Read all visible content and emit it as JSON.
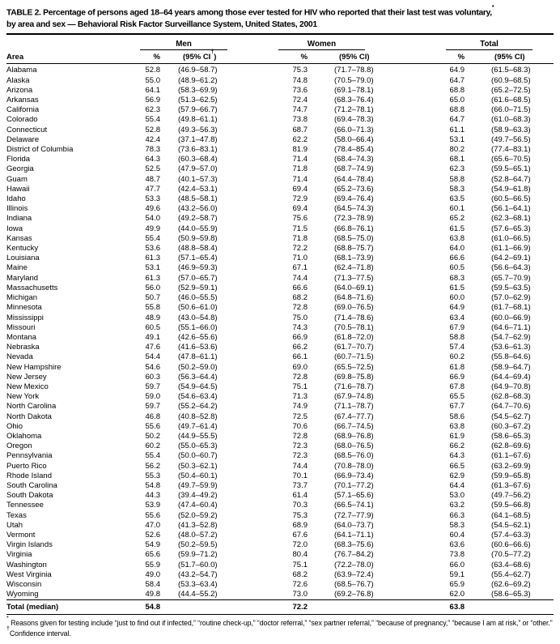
{
  "title": {
    "line1_main": "TABLE 2. Percentage of persons aged 18–64 years among those ever tested for HIV who reported that their last test was voluntary,",
    "footnote_marker": "*",
    "line2": "by area and sex — Behavioral Risk Factor Surveillance System, United States, 2001"
  },
  "table": {
    "groups": [
      "Men",
      "Women",
      "Total"
    ],
    "headers": {
      "area": "Area",
      "pct": "%",
      "ci": "(95% CI)",
      "ci_pre": "(95% CI",
      "dagger": "†",
      "ci_close": ")"
    },
    "rows": [
      {
        "area": "Alabama",
        "men_pct": "52.8",
        "men_ci": "(46.9–58.7)",
        "women_pct": "75.3",
        "women_ci": "(71.7–78.8)",
        "total_pct": "64.9",
        "total_ci": "(61.5–68.3)"
      },
      {
        "area": "Alaska",
        "men_pct": "55.0",
        "men_ci": "(48.9–61.2)",
        "women_pct": "74.8",
        "women_ci": "(70.5–79.0)",
        "total_pct": "64.7",
        "total_ci": "(60.9–68.5)"
      },
      {
        "area": "Arizona",
        "men_pct": "64.1",
        "men_ci": "(58.3–69.9)",
        "women_pct": "73.6",
        "women_ci": "(69.1–78.1)",
        "total_pct": "68.8",
        "total_ci": "(65.2–72.5)"
      },
      {
        "area": "Arkansas",
        "men_pct": "56.9",
        "men_ci": "(51.3–62.5)",
        "women_pct": "72.4",
        "women_ci": "(68.3–76.4)",
        "total_pct": "65.0",
        "total_ci": "(61.6–68.5)"
      },
      {
        "area": "California",
        "men_pct": "62.3",
        "men_ci": "(57.9–66.7)",
        "women_pct": "74.7",
        "women_ci": "(71.2–78.1)",
        "total_pct": "68.8",
        "total_ci": "(66.0–71.5)"
      },
      {
        "area": "Colorado",
        "men_pct": "55.4",
        "men_ci": "(49.8–61.1)",
        "women_pct": "73.8",
        "women_ci": "(69.4–78.3)",
        "total_pct": "64.7",
        "total_ci": "(61.0–68.3)"
      },
      {
        "area": "Connecticut",
        "men_pct": "52.8",
        "men_ci": "(49.3–56.3)",
        "women_pct": "68.7",
        "women_ci": "(66.0–71.3)",
        "total_pct": "61.1",
        "total_ci": "(58.9–63.3)"
      },
      {
        "area": "Delaware",
        "men_pct": "42.4",
        "men_ci": "(37.1–47.8)",
        "women_pct": "62.2",
        "women_ci": "(58.0–66.4)",
        "total_pct": "53.1",
        "total_ci": "(49.7–56.5)"
      },
      {
        "area": "District of Columbia",
        "men_pct": "78.3",
        "men_ci": "(73.6–83.1)",
        "women_pct": "81.9",
        "women_ci": "(78.4–85.4)",
        "total_pct": "80.2",
        "total_ci": "(77.4–83.1)"
      },
      {
        "area": "Florida",
        "men_pct": "64.3",
        "men_ci": "(60.3–68.4)",
        "women_pct": "71.4",
        "women_ci": "(68.4–74.3)",
        "total_pct": "68.1",
        "total_ci": "(65.6–70.5)"
      },
      {
        "area": "Georgia",
        "men_pct": "52.5",
        "men_ci": "(47.9–57.0)",
        "women_pct": "71.8",
        "women_ci": "(68.7–74.9)",
        "total_pct": "62.3",
        "total_ci": "(59.5–65.1)"
      },
      {
        "area": "Guam",
        "men_pct": "48.7",
        "men_ci": "(40.1–57.3)",
        "women_pct": "71.4",
        "women_ci": "(64.4–78.4)",
        "total_pct": "58.8",
        "total_ci": "(52.8–64.7)"
      },
      {
        "area": "Hawaii",
        "men_pct": "47.7",
        "men_ci": "(42.4–53.1)",
        "women_pct": "69.4",
        "women_ci": "(65.2–73.6)",
        "total_pct": "58.3",
        "total_ci": "(54.9–61.8)"
      },
      {
        "area": "Idaho",
        "men_pct": "53.3",
        "men_ci": "(48.5–58.1)",
        "women_pct": "72.9",
        "women_ci": "(69.4–76.4)",
        "total_pct": "63.5",
        "total_ci": "(60.5–66.5)"
      },
      {
        "area": "Illinois",
        "men_pct": "49.6",
        "men_ci": "(43.2–56.0)",
        "women_pct": "69.4",
        "women_ci": "(64.5–74.3)",
        "total_pct": "60.1",
        "total_ci": "(56.1–64.1)"
      },
      {
        "area": "Indiana",
        "men_pct": "54.0",
        "men_ci": "(49.2–58.7)",
        "women_pct": "75.6",
        "women_ci": "(72.3–78.9)",
        "total_pct": "65.2",
        "total_ci": "(62.3–68.1)"
      },
      {
        "area": "Iowa",
        "men_pct": "49.9",
        "men_ci": "(44.0–55.9)",
        "women_pct": "71.5",
        "women_ci": "(66.8–76.1)",
        "total_pct": "61.5",
        "total_ci": "(57.6–65.3)"
      },
      {
        "area": "Kansas",
        "men_pct": "55.4",
        "men_ci": "(50.9–59.8)",
        "women_pct": "71.8",
        "women_ci": "(68.5–75.0)",
        "total_pct": "63.8",
        "total_ci": "(61.0–66.5)"
      },
      {
        "area": "Kentucky",
        "men_pct": "53.6",
        "men_ci": "(48.8–58.4)",
        "women_pct": "72.2",
        "women_ci": "(68.8–75.7)",
        "total_pct": "64.0",
        "total_ci": "(61.1–66.9)"
      },
      {
        "area": "Louisiana",
        "men_pct": "61.3",
        "men_ci": "(57.1–65.4)",
        "women_pct": "71.0",
        "women_ci": "(68.1–73.9)",
        "total_pct": "66.6",
        "total_ci": "(64.2–69.1)"
      },
      {
        "area": "Maine",
        "men_pct": "53.1",
        "men_ci": "(46.9–59.3)",
        "women_pct": "67.1",
        "women_ci": "(62.4–71.8)",
        "total_pct": "60.5",
        "total_ci": "(56.6–64.3)"
      },
      {
        "area": "Maryland",
        "men_pct": "61.3",
        "men_ci": "(57.0–65.7)",
        "women_pct": "74.4",
        "women_ci": "(71.3–77.5)",
        "total_pct": "68.3",
        "total_ci": "(65.7–70.9)"
      },
      {
        "area": "Massachusetts",
        "men_pct": "56.0",
        "men_ci": "(52.9–59.1)",
        "women_pct": "66.6",
        "women_ci": "(64.0–69.1)",
        "total_pct": "61.5",
        "total_ci": "(59.5–63.5)"
      },
      {
        "area": "Michigan",
        "men_pct": "50.7",
        "men_ci": "(46.0–55.5)",
        "women_pct": "68.2",
        "women_ci": "(64.8–71.6)",
        "total_pct": "60.0",
        "total_ci": "(57.0–62.9)"
      },
      {
        "area": "Minnesota",
        "men_pct": "55.8",
        "men_ci": "(50.6–61.0)",
        "women_pct": "72.8",
        "women_ci": "(69.0–76.5)",
        "total_pct": "64.9",
        "total_ci": "(61.7–68.1)"
      },
      {
        "area": "Mississippi",
        "men_pct": "48.9",
        "men_ci": "(43.0–54.8)",
        "women_pct": "75.0",
        "women_ci": "(71.4–78.6)",
        "total_pct": "63.4",
        "total_ci": "(60.0–66.9)"
      },
      {
        "area": "Missouri",
        "men_pct": "60.5",
        "men_ci": "(55.1–66.0)",
        "women_pct": "74.3",
        "women_ci": "(70.5–78.1)",
        "total_pct": "67.9",
        "total_ci": "(64.6–71.1)"
      },
      {
        "area": "Montana",
        "men_pct": "49.1",
        "men_ci": "(42.6–55.6)",
        "women_pct": "66.9",
        "women_ci": "(61.8–72.0)",
        "total_pct": "58.8",
        "total_ci": "(54.7–62.9)"
      },
      {
        "area": "Nebraska",
        "men_pct": "47.6",
        "men_ci": "(41.6–53.6)",
        "women_pct": "66.2",
        "women_ci": "(61.7–70.7)",
        "total_pct": "57.4",
        "total_ci": "(53.6–61.3)"
      },
      {
        "area": "Nevada",
        "men_pct": "54.4",
        "men_ci": "(47.8–61.1)",
        "women_pct": "66.1",
        "women_ci": "(60.7–71.5)",
        "total_pct": "60.2",
        "total_ci": "(55.8–64.6)"
      },
      {
        "area": "New Hampshire",
        "men_pct": "54.6",
        "men_ci": "(50.2–59.0)",
        "women_pct": "69.0",
        "women_ci": "(65.5–72.5)",
        "total_pct": "61.8",
        "total_ci": "(58.9–64.7)"
      },
      {
        "area": "New Jersey",
        "men_pct": "60.3",
        "men_ci": "(56.3–64.4)",
        "women_pct": "72.8",
        "women_ci": "(69.8–75.8)",
        "total_pct": "66.9",
        "total_ci": "(64.4–69.4)"
      },
      {
        "area": "New Mexico",
        "men_pct": "59.7",
        "men_ci": "(54.9–64.5)",
        "women_pct": "75.1",
        "women_ci": "(71.6–78.7)",
        "total_pct": "67.8",
        "total_ci": "(64.9–70.8)"
      },
      {
        "area": "New York",
        "men_pct": "59.0",
        "men_ci": "(54.6–63.4)",
        "women_pct": "71.3",
        "women_ci": "(67.9–74.8)",
        "total_pct": "65.5",
        "total_ci": "(62.8–68.3)"
      },
      {
        "area": "North Carolina",
        "men_pct": "59.7",
        "men_ci": "(55.2–64.2)",
        "women_pct": "74.9",
        "women_ci": "(71.1–78.7)",
        "total_pct": "67.7",
        "total_ci": "(64.7–70.6)"
      },
      {
        "area": "North Dakota",
        "men_pct": "46.8",
        "men_ci": "(40.8–52.8)",
        "women_pct": "72.5",
        "women_ci": "(67.4–77.7)",
        "total_pct": "58.6",
        "total_ci": "(54.5–62.7)"
      },
      {
        "area": "Ohio",
        "men_pct": "55.6",
        "men_ci": "(49.7–61.4)",
        "women_pct": "70.6",
        "women_ci": "(66.7–74.5)",
        "total_pct": "63.8",
        "total_ci": "(60.3–67.2)"
      },
      {
        "area": "Oklahoma",
        "men_pct": "50.2",
        "men_ci": "(44.9–55.5)",
        "women_pct": "72.8",
        "women_ci": "(68.9–76.8)",
        "total_pct": "61.9",
        "total_ci": "(58.6–65.3)"
      },
      {
        "area": "Oregon",
        "men_pct": "60.2",
        "men_ci": "(55.0–65.3)",
        "women_pct": "72.3",
        "women_ci": "(68.0–76.5)",
        "total_pct": "66.2",
        "total_ci": "(62.8–69.6)"
      },
      {
        "area": "Pennsylvania",
        "men_pct": "55.4",
        "men_ci": "(50.0–60.7)",
        "women_pct": "72.3",
        "women_ci": "(68.5–76.0)",
        "total_pct": "64.3",
        "total_ci": "(61.1–67.6)"
      },
      {
        "area": "Puerto Rico",
        "men_pct": "56.2",
        "men_ci": "(50.3–62.1)",
        "women_pct": "74.4",
        "women_ci": "(70.8–78.0)",
        "total_pct": "66.5",
        "total_ci": "(63.2–69.9)"
      },
      {
        "area": "Rhode Island",
        "men_pct": "55.3",
        "men_ci": "(50.4–60.1)",
        "women_pct": "70.1",
        "women_ci": "(66.9–73.4)",
        "total_pct": "62.9",
        "total_ci": "(59.9–65.8)"
      },
      {
        "area": "South Carolina",
        "men_pct": "54.8",
        "men_ci": "(49.7–59.9)",
        "women_pct": "73.7",
        "women_ci": "(70.1–77.2)",
        "total_pct": "64.4",
        "total_ci": "(61.3–67.6)"
      },
      {
        "area": "South Dakota",
        "men_pct": "44.3",
        "men_ci": "(39.4–49.2)",
        "women_pct": "61.4",
        "women_ci": "(57.1–65.6)",
        "total_pct": "53.0",
        "total_ci": "(49.7–56.2)"
      },
      {
        "area": "Tennessee",
        "men_pct": "53.9",
        "men_ci": "(47.4–60.4)",
        "women_pct": "70.3",
        "women_ci": "(66.5–74.1)",
        "total_pct": "63.2",
        "total_ci": "(59.5–66.8)"
      },
      {
        "area": "Texas",
        "men_pct": "55.6",
        "men_ci": "(52.0–59.2)",
        "women_pct": "75.3",
        "women_ci": "(72.7–77.9)",
        "total_pct": "66.3",
        "total_ci": "(64.1–68.5)"
      },
      {
        "area": "Utah",
        "men_pct": "47.0",
        "men_ci": "(41.3–52.8)",
        "women_pct": "68.9",
        "women_ci": "(64.0–73.7)",
        "total_pct": "58.3",
        "total_ci": "(54.5–62.1)"
      },
      {
        "area": "Vermont",
        "men_pct": "52.6",
        "men_ci": "(48.0–57.2)",
        "women_pct": "67.6",
        "women_ci": "(64.1–71.1)",
        "total_pct": "60.4",
        "total_ci": "(57.4–63.3)"
      },
      {
        "area": "Virgin Islands",
        "men_pct": "54.9",
        "men_ci": "(50.2–59.5)",
        "women_pct": "72.0",
        "women_ci": "(68.3–75.6)",
        "total_pct": "63.6",
        "total_ci": "(60.6–66.6)"
      },
      {
        "area": "Virginia",
        "men_pct": "65.6",
        "men_ci": "(59.9–71.2)",
        "women_pct": "80.4",
        "women_ci": "(76.7–84.2)",
        "total_pct": "73.8",
        "total_ci": "(70.5–77.2)"
      },
      {
        "area": "Washington",
        "men_pct": "55.9",
        "men_ci": "(51.7–60.0)",
        "women_pct": "75.1",
        "women_ci": "(72.2–78.0)",
        "total_pct": "66.0",
        "total_ci": "(63.4–68.6)"
      },
      {
        "area": "West Virginia",
        "men_pct": "49.0",
        "men_ci": "(43.2–54.7)",
        "women_pct": "68.2",
        "women_ci": "(63.9–72.4)",
        "total_pct": "59.1",
        "total_ci": "(55.4–62.7)"
      },
      {
        "area": "Wisconsin",
        "men_pct": "58.4",
        "men_ci": "(53.3–63.4)",
        "women_pct": "72.6",
        "women_ci": "(68.5–76.7)",
        "total_pct": "65.9",
        "total_ci": "(62.6–69.2)"
      },
      {
        "area": "Wyoming",
        "men_pct": "49.8",
        "men_ci": "(44.4–55.2)",
        "women_pct": "73.0",
        "women_ci": "(69.2–76.8)",
        "total_pct": "62.0",
        "total_ci": "(58.6–65.3)"
      }
    ],
    "total": {
      "area": "Total (median)",
      "men_pct": "54.8",
      "women_pct": "72.2",
      "total_pct": "63.8"
    }
  },
  "footnotes": [
    {
      "marker": "*",
      "text": "Reasons given for testing include “just to find out if infected,” “routine check-up,” “doctor referral,” “sex partner referral,” “because of pregnancy,” “because I am at risk,” or “other.”"
    },
    {
      "marker": "†",
      "text": "Confidence interval."
    }
  ]
}
